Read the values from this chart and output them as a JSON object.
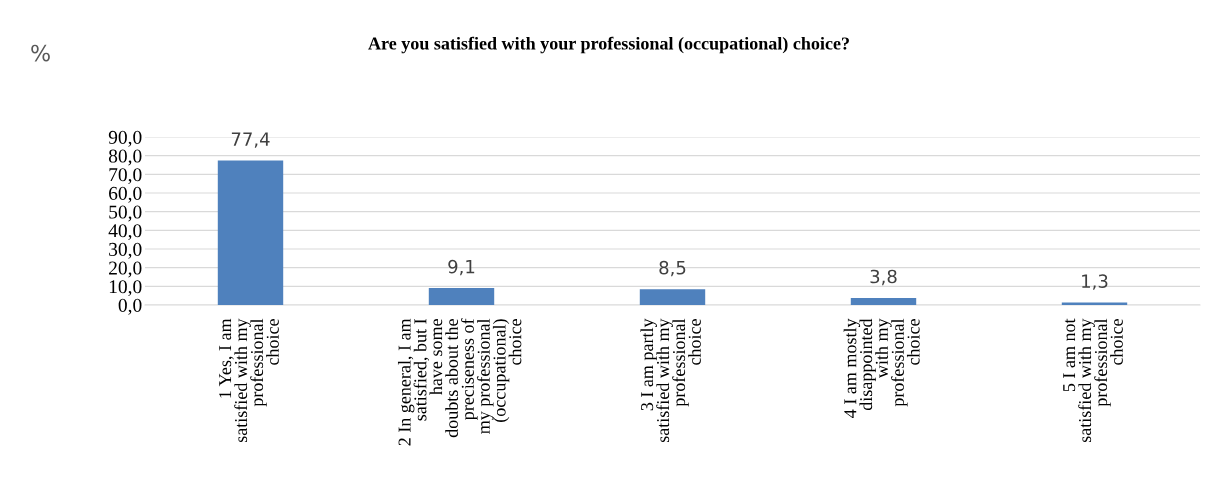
{
  "chart_data": {
    "type": "bar",
    "title": "Are you satisfied with your professional (occupational) choice?",
    "ylabel": "%",
    "categories": [
      "1 Yes, I am\nsatisfied with my\nprofessional\nchoice",
      "2 In general, I am\nsatisfied, but I\nhave some\ndoubts about the\npreciseness of\nmy professional\n(occupational)\nchoice",
      "3 I am partly\nsatisfied with my\nprofessional\nchoice",
      "4 I am mostly\ndisappointed\nwith my\nprofessional\nchoice",
      "5 I am not\nsatisfied with my\nprofessional\nchoice"
    ],
    "values": [
      77.4,
      9.1,
      8.5,
      3.8,
      1.3
    ],
    "value_labels": [
      "77,4",
      "9,1",
      "8,5",
      "3,8",
      "1,3"
    ],
    "color": "#4f81bd",
    "ylim": [
      0,
      90
    ],
    "yticks": [
      {
        "value": 0,
        "label": "0,0"
      },
      {
        "value": 10,
        "label": "10,0"
      },
      {
        "value": 20,
        "label": "20,0"
      },
      {
        "value": 30,
        "label": "30,0"
      },
      {
        "value": 40,
        "label": "40,0"
      },
      {
        "value": 50,
        "label": "50,0"
      },
      {
        "value": 60,
        "label": "60,0"
      },
      {
        "value": 70,
        "label": "70,0"
      },
      {
        "value": 80,
        "label": "80,0"
      },
      {
        "value": 90,
        "label": "90,0"
      }
    ],
    "grid": "y",
    "legend": false
  }
}
